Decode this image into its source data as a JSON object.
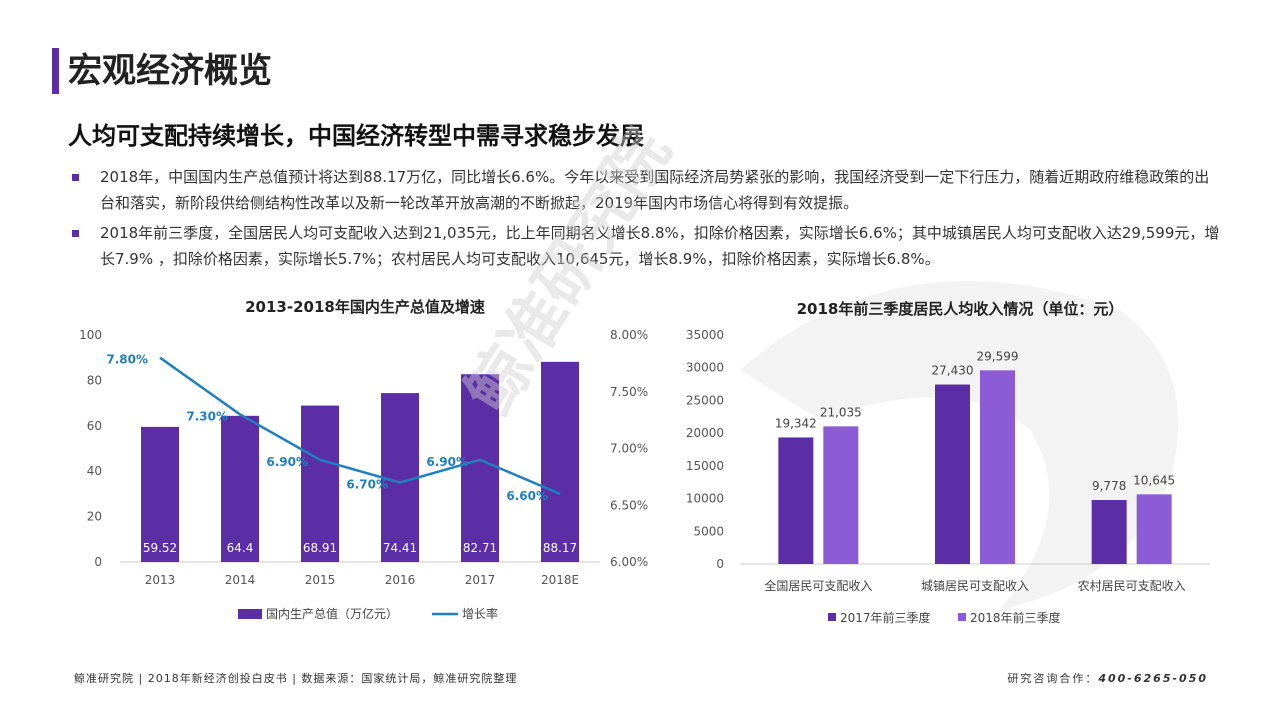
{
  "page": {
    "title": "宏观经济概览",
    "subtitle": "人均可支配持续增长，中国经济转型中需寻求稳步发展",
    "bullets": [
      "2018年，中国国内生产总值预计将达到88.17万亿，同比增长6.6%。今年以来受到国际经济局势紧张的影响，我国经济受到一定下行压力，随着近期政府维稳政策的出台和落实，新阶段供给侧结构性改革以及新一轮改革开放高潮的不断掀起，2019年国内市场信心将得到有效提振。",
      "2018年前三季度，全国居民人均可支配收入达到21,035元，比上年同期名义增长8.8%，扣除价格因素，实际增长6.6%；其中城镇居民人均可支配收入达29,599元，增长7.9% ，扣除价格因素，实际增长5.7%；农村居民人均可支配收入10,645元，增长8.9%，扣除价格因素，实际增长6.8%。"
    ],
    "watermark": "鲸准研究院",
    "footer_left": "鲸准研究院 | 2018年新经济创投白皮书 | 数据来源：国家统计局，鲸准研究院整理",
    "footer_right_label": "研究咨询合作：",
    "footer_right_phone": "400-6265-050",
    "colors": {
      "accent": "#5b2ea6",
      "line": "#1f7fbf",
      "bar2017": "#5b2ea6",
      "bar2018": "#8b5cd6"
    }
  },
  "chart_data": [
    {
      "type": "bar",
      "title": "2013-2018年国内生产总值及增速",
      "categories": [
        "2013",
        "2014",
        "2015",
        "2016",
        "2017",
        "2018E"
      ],
      "series": [
        {
          "name": "国内生产总值（万亿元）",
          "kind": "bar",
          "axis": "left",
          "values": [
            59.52,
            64.4,
            68.91,
            74.41,
            82.71,
            88.17
          ],
          "labels": [
            "59.52",
            "64.4",
            "68.91",
            "74.41",
            "82.71",
            "88.17"
          ]
        },
        {
          "name": "增长率",
          "kind": "line",
          "axis": "right",
          "values": [
            7.8,
            7.3,
            6.9,
            6.7,
            6.9,
            6.6
          ],
          "labels": [
            "7.80%",
            "7.30%",
            "6.90%",
            "6.70%",
            "6.90%",
            "6.60%"
          ]
        }
      ],
      "ylim_left": [
        0,
        100
      ],
      "yticks_left": [
        "0",
        "20",
        "40",
        "60",
        "80",
        "100"
      ],
      "ylim_right": [
        6.0,
        8.0
      ],
      "yticks_right": [
        "6.00%",
        "6.50%",
        "7.00%",
        "7.50%",
        "8.00%"
      ],
      "legend": "bottom",
      "grid": false
    },
    {
      "type": "bar",
      "title": "2018年前三季度居民人均收入情况（单位：元）",
      "categories": [
        "全国居民可支配收入",
        "城镇居民可支配收入",
        "农村居民可支配收入"
      ],
      "series": [
        {
          "name": "2017年前三季度",
          "values": [
            19342,
            27430,
            9778
          ],
          "labels": [
            "19,342",
            "27,430",
            "9,778"
          ]
        },
        {
          "name": "2018年前三季度",
          "values": [
            21035,
            29599,
            10645
          ],
          "labels": [
            "21,035",
            "29,599",
            "10,645"
          ]
        }
      ],
      "ylim": [
        0,
        35000
      ],
      "yticks": [
        "0",
        "5000",
        "10000",
        "15000",
        "20000",
        "25000",
        "30000",
        "35000"
      ],
      "legend": "bottom",
      "grid": false
    }
  ]
}
